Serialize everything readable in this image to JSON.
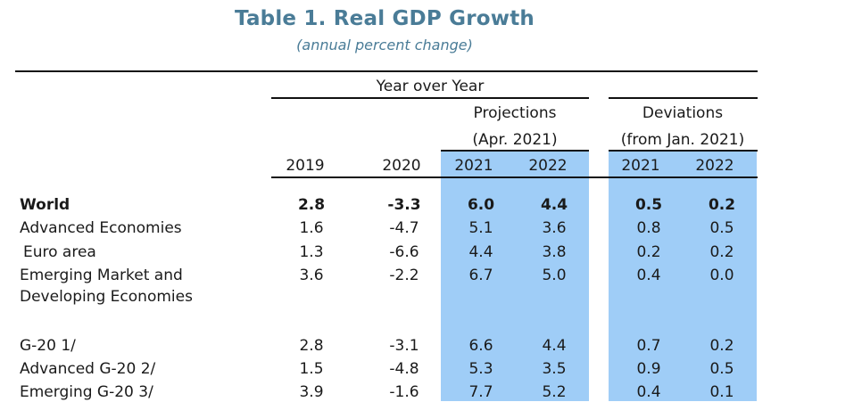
{
  "title": "Table 1. Real GDP Growth",
  "subtitle": "(annual percent change)",
  "header": {
    "yoy": "Year over Year",
    "projections": "Projections",
    "projections_sub": "(Apr. 2021)",
    "deviations": "Deviations",
    "deviations_sub": "(from Jan. 2021)",
    "years": [
      "2019",
      "2020",
      "2021",
      "2022",
      "2021",
      "2022"
    ]
  },
  "rows": [
    {
      "label": "World",
      "values": [
        "2.8",
        "-3.3",
        "6.0",
        "4.4",
        "0.5",
        "0.2"
      ]
    },
    {
      "label": "Advanced Economies",
      "values": [
        "1.6",
        "-4.7",
        "5.1",
        "3.6",
        "0.8",
        "0.5"
      ]
    },
    {
      "label": " Euro area",
      "values": [
        "1.3",
        "-6.6",
        "4.4",
        "3.8",
        "0.2",
        "0.2"
      ]
    },
    {
      "label": "Emerging Market and",
      "label2": "Developing Economies",
      "values": [
        "3.6",
        "-2.2",
        "6.7",
        "5.0",
        "0.4",
        "0.0"
      ]
    },
    {
      "label": "G-20 1/",
      "values": [
        "2.8",
        "-3.1",
        "6.6",
        "4.4",
        "0.7",
        "0.2"
      ]
    },
    {
      "label": "Advanced G-20 2/",
      "values": [
        "1.5",
        "-4.8",
        "5.3",
        "3.5",
        "0.9",
        "0.5"
      ]
    },
    {
      "label": "Emerging G-20 3/",
      "values": [
        "3.9",
        "-1.6",
        "7.7",
        "5.2",
        "0.4",
        "0.1"
      ]
    }
  ]
}
